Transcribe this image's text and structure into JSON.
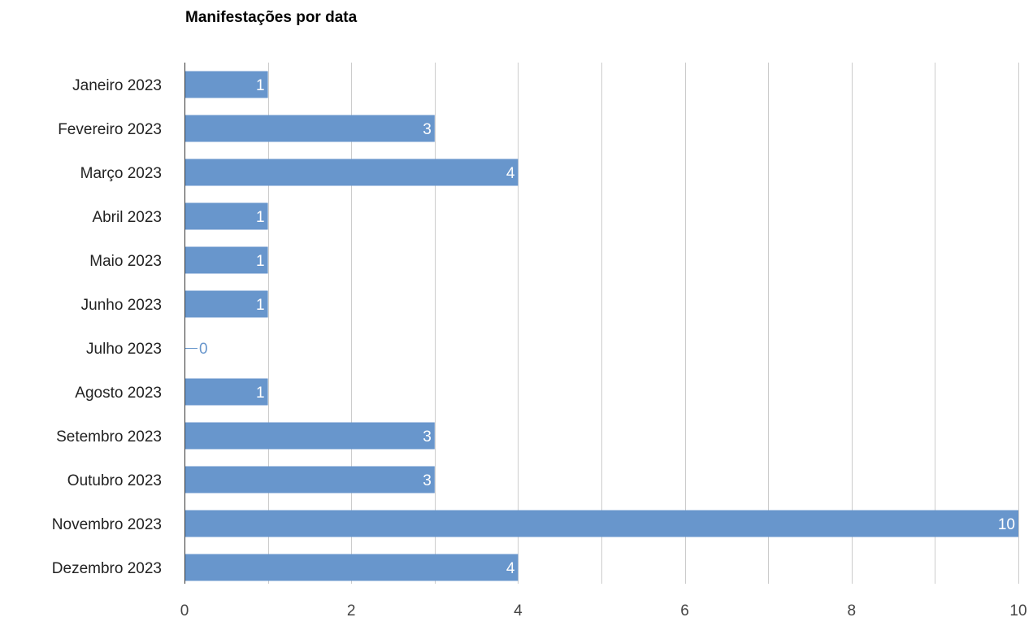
{
  "chart_data": {
    "type": "bar",
    "orientation": "horizontal",
    "title": "Manifestações por data",
    "xlabel": "",
    "ylabel": "",
    "categories": [
      "Janeiro 2023",
      "Fevereiro 2023",
      "Março 2023",
      "Abril 2023",
      "Maio 2023",
      "Junho 2023",
      "Julho 2023",
      "Agosto 2023",
      "Setembro 2023",
      "Outubro 2023",
      "Novembro 2023",
      "Dezembro 2023"
    ],
    "values": [
      1,
      3,
      4,
      1,
      1,
      1,
      0,
      1,
      3,
      3,
      10,
      4
    ],
    "xlim": [
      0,
      10
    ],
    "x_ticks": [
      "0",
      "2",
      "4",
      "6",
      "8",
      "10"
    ],
    "grid": true,
    "data_labels": true,
    "colors": {
      "bar": "#6896cc",
      "gridline": "#cccccc",
      "axis": "#333333",
      "zero_label": "#6896cc"
    }
  }
}
